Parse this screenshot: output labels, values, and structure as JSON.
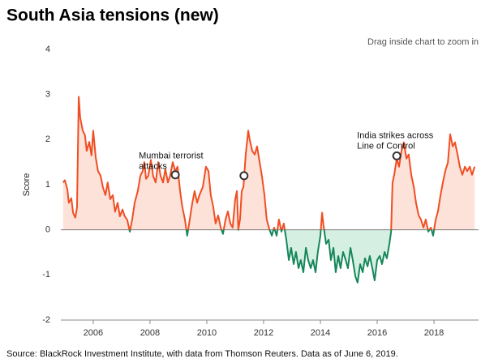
{
  "chart_data": {
    "type": "line",
    "title": "South Asia tensions (new)",
    "hint": "Drag inside chart to zoom in",
    "ylabel": "Score",
    "source": "Source: BlackRock Investment Institute, with data from Thomson Reuters. Data as of June 6, 2019.",
    "xlim": [
      2004.86,
      2019.57
    ],
    "xticks": [
      2006,
      2008,
      2010,
      2012,
      2014,
      2016,
      2018
    ],
    "ylim": [
      -2,
      4
    ],
    "yticks": [
      -2,
      -1,
      0,
      1,
      2,
      3,
      4
    ],
    "grid": false,
    "positive_color": "#f04e23",
    "positive_fill": "#fde2da",
    "negative_color": "#16875a",
    "negative_fill": "#d6efe3",
    "x": [
      2004.94,
      2005.0,
      2005.09,
      2005.14,
      2005.23,
      2005.29,
      2005.37,
      2005.43,
      2005.49,
      2005.54,
      2005.63,
      2005.71,
      2005.77,
      2005.86,
      2005.94,
      2006.0,
      2006.09,
      2006.17,
      2006.26,
      2006.34,
      2006.43,
      2006.51,
      2006.6,
      2006.69,
      2006.77,
      2006.86,
      2006.94,
      2007.03,
      2007.11,
      2007.2,
      2007.29,
      2007.37,
      2007.46,
      2007.57,
      2007.66,
      2007.74,
      2007.8,
      2007.86,
      2007.94,
      2008.03,
      2008.11,
      2008.2,
      2008.29,
      2008.37,
      2008.46,
      2008.54,
      2008.63,
      2008.71,
      2008.8,
      2008.89,
      2008.97,
      2009.06,
      2009.14,
      2009.23,
      2009.31,
      2009.4,
      2009.49,
      2009.57,
      2009.66,
      2009.74,
      2009.86,
      2009.97,
      2010.06,
      2010.14,
      2010.23,
      2010.31,
      2010.4,
      2010.49,
      2010.57,
      2010.66,
      2010.74,
      2010.83,
      2010.91,
      2011.0,
      2011.06,
      2011.11,
      2011.17,
      2011.23,
      2011.29,
      2011.37,
      2011.46,
      2011.51,
      2011.6,
      2011.69,
      2011.77,
      2011.86,
      2011.94,
      2012.03,
      2012.11,
      2012.2,
      2012.29,
      2012.37,
      2012.46,
      2012.54,
      2012.63,
      2012.71,
      2012.8,
      2012.89,
      2012.97,
      2013.06,
      2013.14,
      2013.23,
      2013.31,
      2013.4,
      2013.49,
      2013.57,
      2013.66,
      2013.74,
      2013.83,
      2013.91,
      2014.0,
      2014.06,
      2014.11,
      2014.2,
      2014.29,
      2014.37,
      2014.46,
      2014.54,
      2014.63,
      2014.71,
      2014.8,
      2014.89,
      2014.97,
      2015.06,
      2015.14,
      2015.23,
      2015.31,
      2015.4,
      2015.49,
      2015.57,
      2015.66,
      2015.74,
      2015.83,
      2015.91,
      2016.0,
      2016.09,
      2016.17,
      2016.26,
      2016.34,
      2016.43,
      2016.49,
      2016.54,
      2016.6,
      2016.69,
      2016.77,
      2016.86,
      2016.94,
      2017.03,
      2017.11,
      2017.2,
      2017.29,
      2017.37,
      2017.46,
      2017.54,
      2017.63,
      2017.71,
      2017.8,
      2017.89,
      2017.97,
      2018.06,
      2018.14,
      2018.23,
      2018.31,
      2018.4,
      2018.49,
      2018.57,
      2018.66,
      2018.74,
      2018.83,
      2018.91,
      2019.0,
      2019.09,
      2019.17,
      2019.26,
      2019.34,
      2019.43
    ],
    "values": [
      1.05,
      1.1,
      0.9,
      0.6,
      0.7,
      0.38,
      0.27,
      0.5,
      2.95,
      2.5,
      2.2,
      2.1,
      1.75,
      1.95,
      1.65,
      2.2,
      1.6,
      1.3,
      1.2,
      0.95,
      0.77,
      1.05,
      0.68,
      0.77,
      0.4,
      0.6,
      0.3,
      0.45,
      0.3,
      0.22,
      -0.04,
      0.22,
      0.6,
      0.86,
      1.2,
      1.3,
      1.5,
      1.13,
      1.2,
      1.55,
      1.2,
      1.05,
      1.5,
      1.2,
      1.05,
      1.35,
      1.05,
      1.2,
      1.5,
      1.3,
      1.4,
      0.86,
      0.5,
      0.23,
      -0.13,
      0.23,
      0.6,
      0.86,
      0.6,
      0.77,
      0.95,
      1.4,
      1.3,
      0.77,
      0.5,
      0.14,
      0.32,
      0.05,
      -0.09,
      0.23,
      0.41,
      0.14,
      0.05,
      0.68,
      0.86,
      0,
      0.23,
      0.86,
      0.95,
      1.67,
      2.2,
      2.0,
      1.75,
      1.67,
      1.85,
      1.5,
      1.2,
      0.77,
      0.23,
      0.02,
      -0.13,
      0.05,
      -0.13,
      0.23,
      -0.04,
      0.14,
      -0.22,
      -0.67,
      -0.4,
      -0.76,
      -0.49,
      -0.85,
      -0.67,
      -0.94,
      -0.4,
      -0.67,
      -0.85,
      -0.67,
      -0.94,
      -0.49,
      -0.13,
      0.38,
      0.1,
      -0.31,
      -0.22,
      -0.67,
      -0.4,
      -0.94,
      -0.58,
      -0.85,
      -0.49,
      -0.67,
      -0.85,
      -0.4,
      -0.67,
      -1.03,
      -1.17,
      -0.76,
      -0.94,
      -0.63,
      -0.81,
      -0.58,
      -0.85,
      -1.12,
      -0.67,
      -0.58,
      -0.76,
      -0.49,
      -0.63,
      -0.31,
      -0.04,
      1.05,
      1.22,
      1.58,
      1.4,
      1.76,
      1.94,
      1.58,
      1.67,
      1.22,
      0.95,
      0.59,
      0.32,
      0.23,
      0.05,
      0.23,
      -0.04,
      0.05,
      -0.13,
      0.23,
      0.41,
      0.77,
      1.04,
      1.31,
      1.49,
      2.12,
      1.85,
      1.94,
      1.67,
      1.4,
      1.22,
      1.4,
      1.3,
      1.4,
      1.22,
      1.4
    ],
    "annotations": [
      {
        "x": 2008.89,
        "y": 1.22,
        "text": [
          "Mumbai terrorist",
          "attacks"
        ]
      },
      {
        "x": 2011.31,
        "y": 1.2
      },
      {
        "x": 2016.69,
        "y": 1.64,
        "text": [
          "India strikes across",
          "Line of Control"
        ]
      }
    ]
  }
}
